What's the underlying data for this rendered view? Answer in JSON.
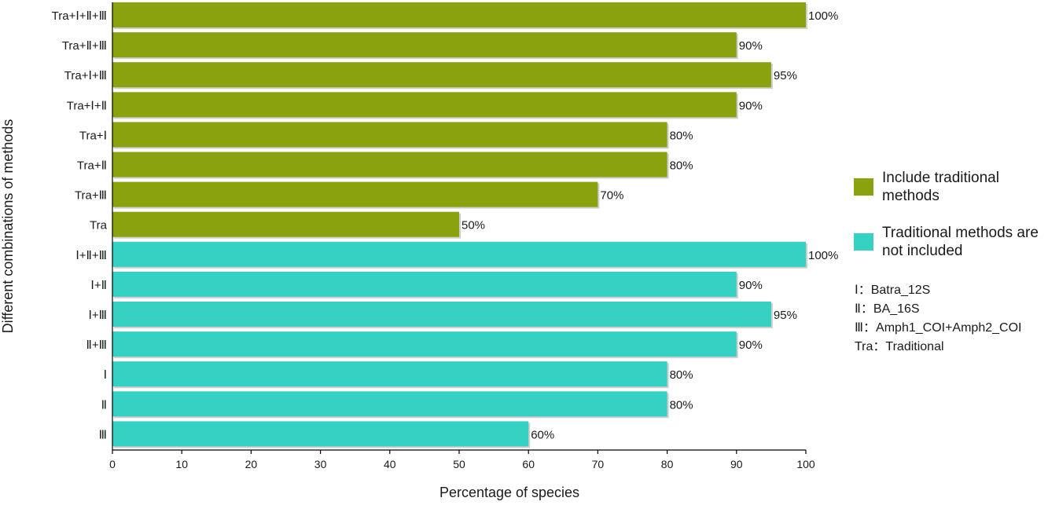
{
  "chart_data": {
    "type": "bar",
    "orientation": "horizontal",
    "xlabel": "Percentage of species",
    "ylabel": "Different combinations of methods",
    "xlim": [
      0,
      100
    ],
    "xticks": [
      0,
      10,
      20,
      30,
      40,
      50,
      60,
      70,
      80,
      90,
      100
    ],
    "categories": [
      "Tra+Ⅰ+Ⅱ+Ⅲ",
      "Tra+Ⅱ+Ⅲ",
      "Tra+Ⅰ+Ⅲ",
      "Tra+Ⅰ+Ⅱ",
      "Tra+Ⅰ",
      "Tra+Ⅱ",
      "Tra+Ⅲ",
      "Tra",
      "Ⅰ+Ⅱ+Ⅲ",
      "Ⅰ+Ⅱ",
      "Ⅰ+Ⅲ",
      "Ⅱ+Ⅲ",
      "Ⅰ",
      "Ⅱ",
      "Ⅲ"
    ],
    "values": [
      100,
      90,
      95,
      90,
      80,
      80,
      70,
      50,
      100,
      90,
      95,
      90,
      80,
      80,
      60
    ],
    "data_labels": [
      "100%",
      "90%",
      "95%",
      "90%",
      "80%",
      "80%",
      "70%",
      "50%",
      "100%",
      "90%",
      "95%",
      "90%",
      "80%",
      "80%",
      "60%"
    ],
    "groups": [
      "traditional",
      "traditional",
      "traditional",
      "traditional",
      "traditional",
      "traditional",
      "traditional",
      "traditional",
      "non_traditional",
      "non_traditional",
      "non_traditional",
      "non_traditional",
      "non_traditional",
      "non_traditional",
      "non_traditional"
    ],
    "series": [
      {
        "key": "traditional",
        "name": "Include traditional methods",
        "color": "#8ba20f"
      },
      {
        "key": "non_traditional",
        "name": "Traditional methods are not included",
        "color": "#35d1c3"
      }
    ],
    "legend_placement": "right",
    "grid": false
  },
  "legend_labels": {
    "traditional": "Include traditional methods",
    "non_traditional": "Traditional methods are not included"
  },
  "notes": [
    {
      "key": "Ⅰ：",
      "value": "Batra_12S"
    },
    {
      "key": "Ⅱ：",
      "value": "BA_16S"
    },
    {
      "key": "Ⅲ：",
      "value": "Amph1_COI+Amph2_COI"
    },
    {
      "key": "Tra：",
      "value": "Traditional"
    }
  ]
}
